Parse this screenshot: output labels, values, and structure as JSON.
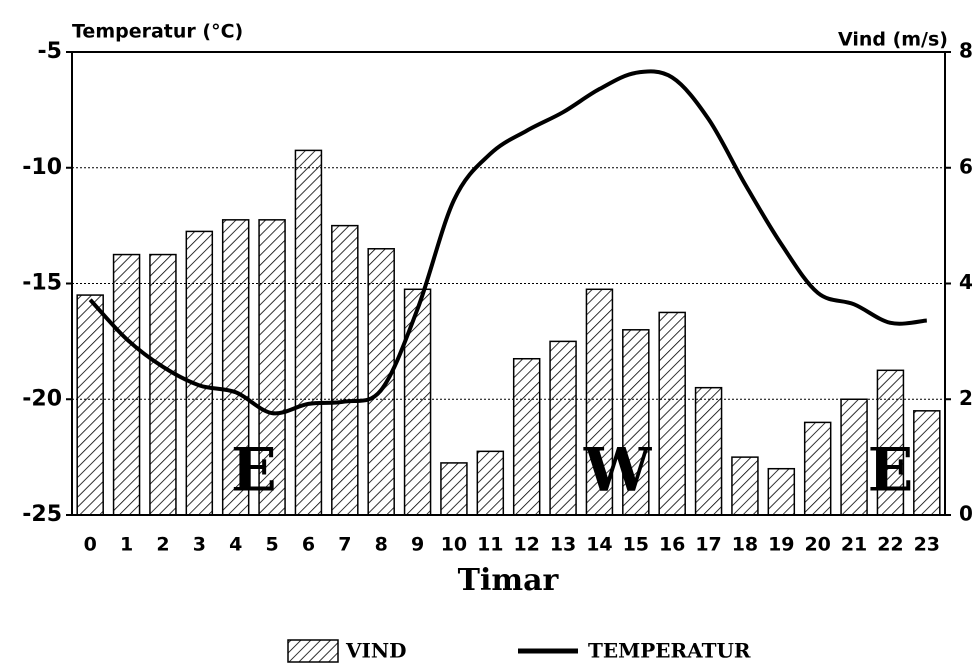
{
  "chart_data": {
    "type": "bar",
    "ylabel": "Temperatur (°C)",
    "y2label": "Vind (m/s)",
    "xlabel": "Timar",
    "categories": [
      "0",
      "1",
      "2",
      "3",
      "4",
      "5",
      "6",
      "7",
      "8",
      "9",
      "10",
      "11",
      "12",
      "13",
      "14",
      "15",
      "16",
      "17",
      "18",
      "19",
      "20",
      "21",
      "22",
      "23"
    ],
    "series": [
      {
        "name": "VIND",
        "type": "bar",
        "axis": "y2",
        "color": "#000000",
        "values": [
          3.8,
          4.5,
          4.5,
          4.9,
          5.1,
          5.1,
          6.3,
          5.0,
          4.6,
          3.9,
          0.9,
          1.1,
          2.7,
          3.0,
          3.9,
          3.2,
          3.5,
          2.2,
          1.0,
          0.8,
          1.6,
          2.0,
          2.5,
          1.8
        ]
      },
      {
        "name": "TEMPERATUR",
        "type": "line",
        "axis": "y",
        "color": "#000000",
        "values": [
          -15.7,
          -17.4,
          -18.6,
          -19.4,
          -19.7,
          -20.6,
          -20.2,
          -20.1,
          -19.6,
          -16.1,
          -11.4,
          -9.4,
          -8.4,
          -7.6,
          -6.6,
          -5.9,
          -6.1,
          -7.9,
          -10.7,
          -13.3,
          -15.4,
          -15.9,
          -16.7,
          -16.6
        ]
      }
    ],
    "ylim": [
      -25,
      -5
    ],
    "yticks": [
      -25,
      -20,
      -15,
      -10,
      -5
    ],
    "y2lim": [
      0,
      8
    ],
    "y2ticks": [
      0,
      2,
      4,
      6,
      8
    ],
    "grid": true,
    "annotations": [
      "E",
      "W",
      "E"
    ]
  }
}
